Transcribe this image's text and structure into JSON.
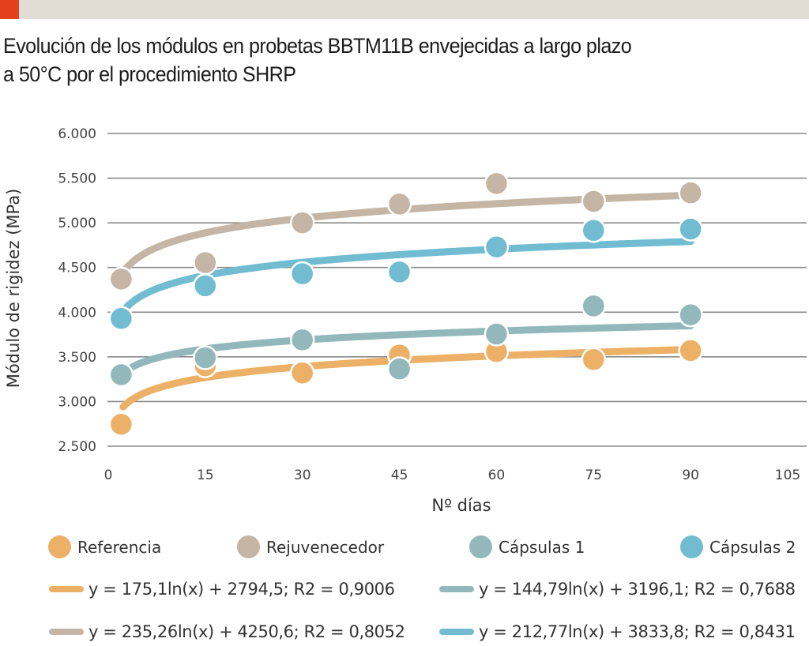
{
  "header": {
    "title_line1": "Evolución de los módulos en probetas BBTM11B envejecidas a largo plazo",
    "title_line2": " a 50°C por el procedimiento SHRP",
    "accent_color": "#e2411c",
    "bar_color": "#e1ddd5"
  },
  "chart_data": {
    "type": "scatter",
    "title": "Evolución de los módulos en probetas BBTM11B envejecidas a largo plazo a 50°C por el procedimiento SHRP",
    "xlabel": "Nº días",
    "ylabel": "Módulo de rigidez (MPa)",
    "xlim": [
      0,
      105
    ],
    "ylim": [
      2500,
      6000
    ],
    "xticks": [
      0,
      15,
      30,
      45,
      60,
      75,
      90,
      105
    ],
    "xtick_labels": [
      "0",
      "15",
      "30",
      "45",
      "60",
      "75",
      "90",
      "105"
    ],
    "yticks": [
      2500,
      3000,
      3500,
      4000,
      4500,
      5000,
      5500,
      6000
    ],
    "ytick_labels": [
      "2.500",
      "3.000",
      "3.500",
      "4.000",
      "4.500",
      "5.000",
      "5.500",
      "6.000"
    ],
    "grid": "horizontal",
    "legend_position": "bottom",
    "x": [
      2,
      15,
      30,
      45,
      60,
      75,
      90
    ],
    "series": [
      {
        "name": "Referencia",
        "color": "#ecb066",
        "values": [
          2745,
          3400,
          3320,
          3520,
          3560,
          3470,
          3570
        ],
        "trendline": {
          "a": 175.1,
          "b": 2794.5,
          "label": "y = 175,1ln(x) + 2794,5; R2 = 0,9006"
        }
      },
      {
        "name": "Rejuvenecedor",
        "color": "#c4b5a4",
        "values": [
          4370,
          4555,
          5000,
          5210,
          5440,
          5240,
          5335
        ],
        "trendline": {
          "a": 235.26,
          "b": 4250.6,
          "label": "y = 235,26ln(x) + 4250,6; R2 = 0,8052"
        }
      },
      {
        "name": "Cápsulas 1",
        "color": "#93b8bc",
        "values": [
          3300,
          3490,
          3690,
          3365,
          3755,
          4070,
          3970
        ],
        "trendline": {
          "a": 144.79,
          "b": 3196.1,
          "label": "y = 144,79ln(x) + 3196,1; R2 = 0,7688"
        }
      },
      {
        "name": "Cápsulas 2",
        "color": "#72bcd2",
        "values": [
          3930,
          4295,
          4430,
          4450,
          4730,
          4915,
          4930
        ],
        "trendline": {
          "a": 212.77,
          "b": 3833.8,
          "label": "y = 212,77ln(x) + 3833,8; R2 = 0,8431"
        }
      }
    ]
  },
  "legend": {
    "markers": [
      "Referencia",
      "Rejuvenecedor",
      "Cápsulas 1",
      "Cápsulas 2"
    ],
    "trendlines": [
      "y = 175,1ln(x) + 2794,5; R2 = 0,9006",
      "y = 144,79ln(x) + 3196,1; R2 = 0,7688",
      "y = 235,26ln(x) + 4250,6; R2 = 0,8052",
      "y = 212,77ln(x) + 3833,8; R2 = 0,8431"
    ]
  }
}
